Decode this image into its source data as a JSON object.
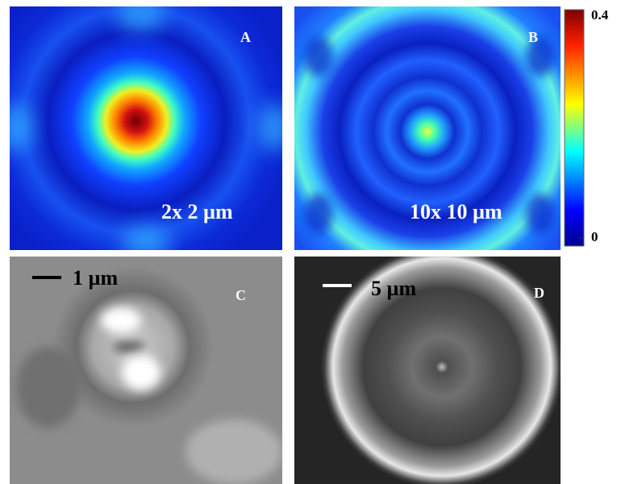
{
  "panels": [
    {
      "label": "A",
      "scale_text": "2x 2 µm"
    },
    {
      "label": "B",
      "scale_text": "10x 10 µm"
    },
    {
      "label": "C",
      "scale_text": "1 µm"
    },
    {
      "label": "D",
      "scale_text": "5 µm"
    }
  ],
  "colorbar": {
    "lim": [
      0,
      0.4
    ],
    "ticks": [
      0,
      0.4
    ]
  }
}
